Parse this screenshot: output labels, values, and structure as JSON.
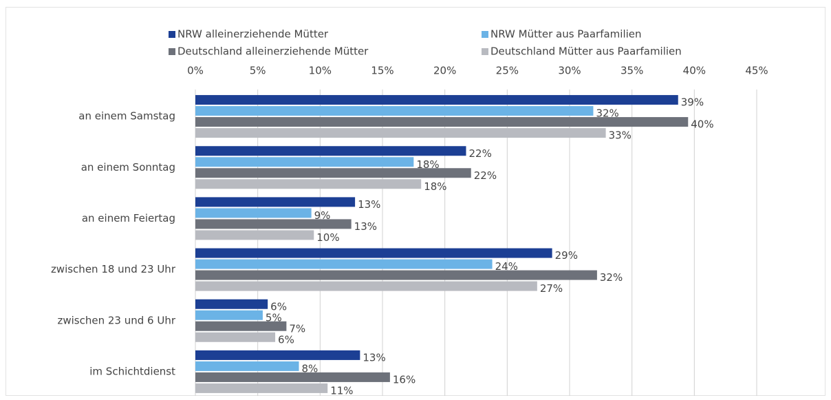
{
  "chart_data": {
    "type": "bar",
    "orientation": "horizontal",
    "grid": true,
    "legend": "top",
    "categories": [
      "an einem Samstag",
      "an einem Sonntag",
      "an einem Feiertag",
      "zwischen 18 und 23 Uhr",
      "zwischen 23 und 6 Uhr",
      "im Schichtdienst"
    ],
    "series": [
      {
        "name": "NRW alleinerziehende Mütter",
        "color": "#1c3f94",
        "values": [
          38.7,
          21.7,
          12.8,
          28.6,
          5.8,
          13.2
        ],
        "value_labels": [
          "39%",
          "22%",
          "13%",
          "29%",
          "6%",
          "13%"
        ]
      },
      {
        "name": "NRW Mütter aus Paarfamilien",
        "color": "#6bb3e6",
        "values": [
          31.9,
          17.5,
          9.3,
          23.8,
          5.4,
          8.3
        ],
        "value_labels": [
          "32%",
          "18%",
          "9%",
          "24%",
          "5%",
          "8%"
        ]
      },
      {
        "name": "Deutschland alleinerziehende Mütter",
        "color": "#6d717a",
        "values": [
          39.5,
          22.1,
          12.5,
          32.2,
          7.3,
          15.6
        ],
        "value_labels": [
          "40%",
          "22%",
          "13%",
          "32%",
          "7%",
          "16%"
        ]
      },
      {
        "name": "Deutschland Mütter aus Paarfamilien",
        "color": "#b8bac0",
        "values": [
          32.9,
          18.1,
          9.5,
          27.4,
          6.4,
          10.6
        ],
        "value_labels": [
          "33%",
          "18%",
          "10%",
          "27%",
          "6%",
          "11%"
        ]
      }
    ],
    "xlim": [
      0,
      45
    ],
    "xticks": [
      {
        "value": 0,
        "label": "0%"
      },
      {
        "value": 5,
        "label": "5%"
      },
      {
        "value": 10,
        "label": "10%"
      },
      {
        "value": 15,
        "label": "15%"
      },
      {
        "value": 20,
        "label": "20%"
      },
      {
        "value": 25,
        "label": "25%"
      },
      {
        "value": 30,
        "label": "30%"
      },
      {
        "value": 35,
        "label": "35%"
      },
      {
        "value": 40,
        "label": "40%"
      },
      {
        "value": 45,
        "label": "45%"
      }
    ]
  }
}
